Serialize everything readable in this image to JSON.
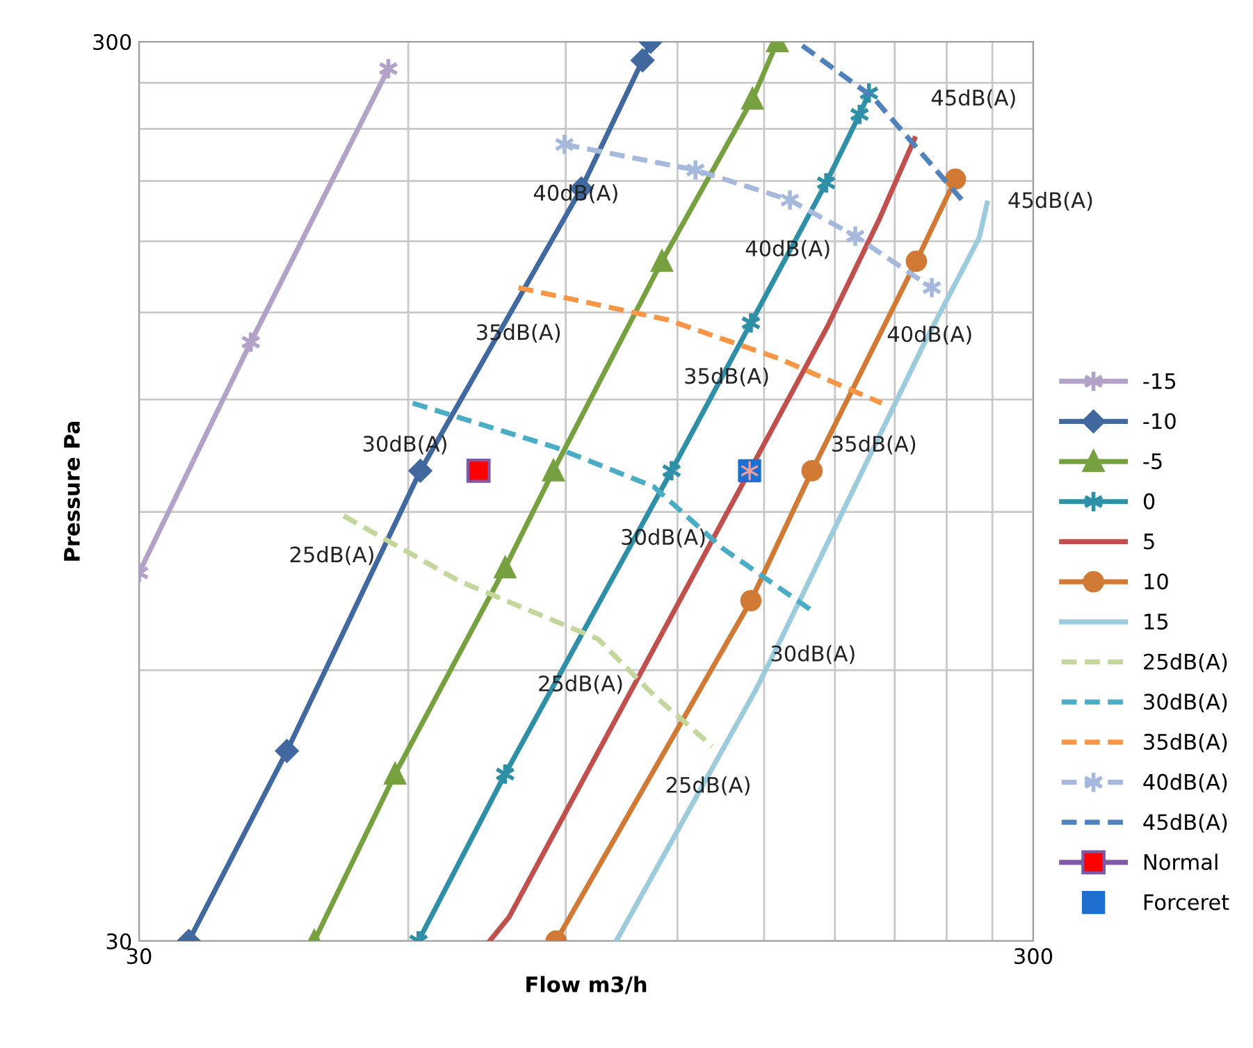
{
  "chart_data": {
    "type": "line",
    "xlabel": "Flow m3/h",
    "ylabel": "Pressure Pa",
    "log": "xy",
    "grid": true,
    "legend": "right",
    "xlim": [
      30,
      300
    ],
    "ylim": [
      30,
      300
    ],
    "xticks": [
      30,
      {
        "value": 60,
        "label": null
      },
      {
        "value": 90,
        "label": null
      },
      {
        "value": 120,
        "label": null
      },
      {
        "value": 150,
        "label": null
      },
      {
        "value": 180,
        "label": null
      },
      {
        "value": 210,
        "label": null
      },
      {
        "value": 240,
        "label": null
      },
      {
        "value": 270,
        "label": null
      },
      300
    ],
    "yticks": [
      30,
      {
        "value": 60,
        "label": null
      },
      {
        "value": 90,
        "label": null
      },
      {
        "value": 120,
        "label": null
      },
      {
        "value": 150,
        "label": null
      },
      {
        "value": 180,
        "label": null
      },
      {
        "value": 210,
        "label": null
      },
      {
        "value": 240,
        "label": null
      },
      {
        "value": 270,
        "label": null
      },
      300
    ],
    "series": [
      {
        "name": "-15",
        "color": "#b3a2c7",
        "marker": "cross",
        "line_style": "solid",
        "x": [
          30,
          40,
          57
        ],
        "values": [
          77,
          139,
          280
        ]
      },
      {
        "name": "-10",
        "color": "#41689f",
        "marker": "diamond",
        "line_style": "solid",
        "x": [
          34.1,
          43.9,
          61.9,
          93.7,
          109.7,
          112
        ],
        "values": [
          30,
          48.8,
          100,
          206,
          286,
          300
        ]
      },
      {
        "name": "-5",
        "color": "#77a040",
        "marker": "triangle",
        "line_style": "solid",
        "x": [
          47.1,
          58,
          77,
          87.2,
          115.3,
          145.6,
          155.2
        ],
        "values": [
          30,
          46,
          78,
          100,
          171,
          259,
          300
        ]
      },
      {
        "name": "0",
        "color": "#2f8fa6",
        "marker": "cross",
        "line_style": "solid",
        "x": [
          61.6,
          77,
          118.2,
          145,
          176,
          191.8,
          196.5
        ],
        "values": [
          30,
          46,
          100,
          146,
          209,
          249,
          263
        ]
      },
      {
        "name": "5",
        "color": "#c0504d",
        "marker": "none",
        "line_style": "solid",
        "x": [
          74,
          77.8,
          176.6,
          201.6,
          221
        ],
        "values": [
          30,
          31.9,
          144.7,
          190,
          234
        ]
      },
      {
        "name": "10",
        "color": "#d07a35",
        "marker": "circle",
        "line_style": "solid",
        "x": [
          87.8,
          145,
          169.7,
          222,
          245.5
        ],
        "values": [
          30,
          71.7,
          100,
          171,
          211
        ]
      },
      {
        "name": "15",
        "color": "#9ccbdc",
        "marker": "none",
        "line_style": "solid",
        "x": [
          102.5,
          146.6,
          157.4,
          226.9,
          261,
          266.4
        ],
        "values": [
          30,
          56.9,
          65.6,
          139,
          181.6,
          198.5
        ]
      },
      {
        "name": "25dB(A)",
        "color": "#c3d69b",
        "marker": "none",
        "line_style": "dashed",
        "x": [
          50.8,
          68.4,
          97.8,
          112.9,
          131.2
        ],
        "values": [
          89.1,
          75.4,
          65,
          56.3,
          49.4
        ]
      },
      {
        "name": "30dB(A)",
        "color": "#4bacc6",
        "marker": "none",
        "line_style": "dashed",
        "x": [
          60.7,
          87.8,
          112.9,
          135,
          171
        ],
        "values": [
          118.9,
          106.1,
          96,
          81.9,
          69.5
        ]
      },
      {
        "name": "35dB(A)",
        "color": "#f79646",
        "marker": "none",
        "line_style": "dashed",
        "x": [
          79.7,
          117,
          155.8,
          203
        ],
        "values": [
          159.8,
          147.2,
          133.3,
          118.9
        ]
      },
      {
        "name": "40dB(A)",
        "color": "#a6b9dc",
        "marker": "cross",
        "line_style": "dashed",
        "x": [
          89.7,
          125.7,
          160.3,
          189.7,
          231
        ],
        "values": [
          230.6,
          216,
          200,
          182.3,
          159.8
        ]
      },
      {
        "name": "45dB(A)",
        "color": "#4f81bd",
        "marker": "none",
        "line_style": "dashed",
        "x": [
          165.5,
          198.7,
          250.8
        ],
        "values": [
          297,
          260,
          199
        ]
      },
      {
        "name": "Normal",
        "color": "#7f58a6",
        "colors": [
          "#ff0000"
        ],
        "marker": "square",
        "line_style": "solid",
        "x": [
          71.9
        ],
        "values": [
          100
        ]
      },
      {
        "name": "Forceret",
        "type": "scatter",
        "color": "#1f6fd0",
        "marker": "square",
        "x": [
          144.5
        ],
        "values": [
          100
        ]
      }
    ],
    "annotations": [
      {
        "text": "40dB(A)",
        "x": 89.7,
        "y": 230.6
      },
      {
        "text": "35dB(A)",
        "x": 79.7,
        "y": 159.8
      },
      {
        "text": "30dB(A)",
        "x": 60.7,
        "y": 118.9
      },
      {
        "text": "25dB(A)",
        "x": 50.8,
        "y": 89.1
      },
      {
        "text": "45dB(A)",
        "x": 198.7,
        "y": 260
      },
      {
        "text": "40dB(A)",
        "x": 160.3,
        "y": 200
      },
      {
        "text": "45dB(A)",
        "x": 250.8,
        "y": 199
      },
      {
        "text": "35dB(A)",
        "x": 155.8,
        "y": 133.3
      },
      {
        "text": "40dB(A)",
        "x": 231,
        "y": 159.8
      },
      {
        "text": "35dB(A)",
        "x": 203,
        "y": 118.9
      },
      {
        "text": "30dB(A)",
        "x": 112.9,
        "y": 96
      },
      {
        "text": "30dB(A)",
        "x": 171,
        "y": 69.5
      },
      {
        "text": "25dB(A)",
        "x": 97.8,
        "y": 65
      },
      {
        "text": "25dB(A)",
        "x": 131.2,
        "y": 49.4
      }
    ]
  }
}
